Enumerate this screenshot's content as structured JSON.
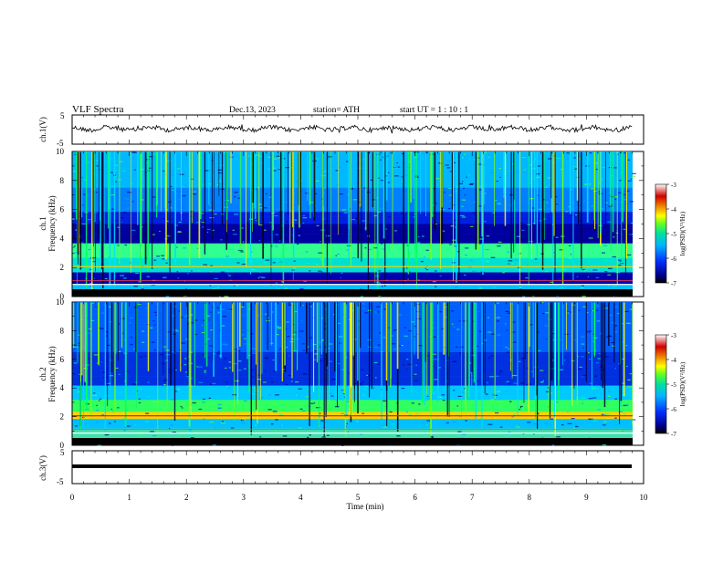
{
  "header": {
    "title": "VLF  Spectra",
    "date": "Dec.13, 2023",
    "station": "station= ATH",
    "start": "start  UT  =    1  : 10 : 1"
  },
  "chart_data": [
    {
      "type": "line",
      "panel": "ch1-waveform",
      "ylabel": "ch.1(V)",
      "ylim": [
        -5,
        5
      ],
      "y_ticks": [
        "5",
        "-5"
      ],
      "trace": "noisy waveform near 0 V across 0–9.8 min",
      "color": "#000000"
    },
    {
      "type": "heatmap",
      "panel": "ch1-spectrogram",
      "ylabel": "ch.1\nFrequency  (kHz)",
      "ylim": [
        0,
        10
      ],
      "y_ticks": [
        "0",
        "2",
        "4",
        "6",
        "8",
        "10"
      ],
      "x_range_min": [
        0,
        9.8
      ],
      "colorbar": {
        "label": "log(PSD)(V²/Hz)",
        "ticks": [
          "-3",
          "-4",
          "-5",
          "-6",
          "-7"
        ],
        "range": [
          -7,
          -3
        ]
      }
    },
    {
      "type": "heatmap",
      "panel": "ch2-spectrogram",
      "ylabel": "ch.2\nFrequency  (kHz)",
      "ylim": [
        0,
        10
      ],
      "y_ticks": [
        "0",
        "2",
        "4",
        "6",
        "8",
        "10"
      ],
      "x_range_min": [
        0,
        9.8
      ],
      "colorbar": {
        "label": "log(PSD)(V²/Hz)",
        "ticks": [
          "-3",
          "-4",
          "-5",
          "-6",
          "-7"
        ],
        "range": [
          -7,
          -3
        ]
      }
    },
    {
      "type": "line",
      "panel": "ch3-waveform",
      "ylabel": "ch.3(V)",
      "ylim": [
        -5,
        5
      ],
      "y_ticks": [
        "5",
        "-5"
      ],
      "trace": "flat line near -1 V",
      "color": "#000000"
    }
  ],
  "x_axis": {
    "label": "Time  (min)",
    "ticks": [
      "0",
      "1",
      "2",
      "3",
      "4",
      "5",
      "6",
      "7",
      "8",
      "9",
      "10"
    ],
    "range": [
      0,
      10
    ]
  },
  "colormap": [
    "#ffffff",
    "#d20000",
    "#f0a000",
    "#ffff00",
    "#78ff00",
    "#00e080",
    "#00b0ff",
    "#0040ff",
    "#0000a0",
    "#000000"
  ]
}
